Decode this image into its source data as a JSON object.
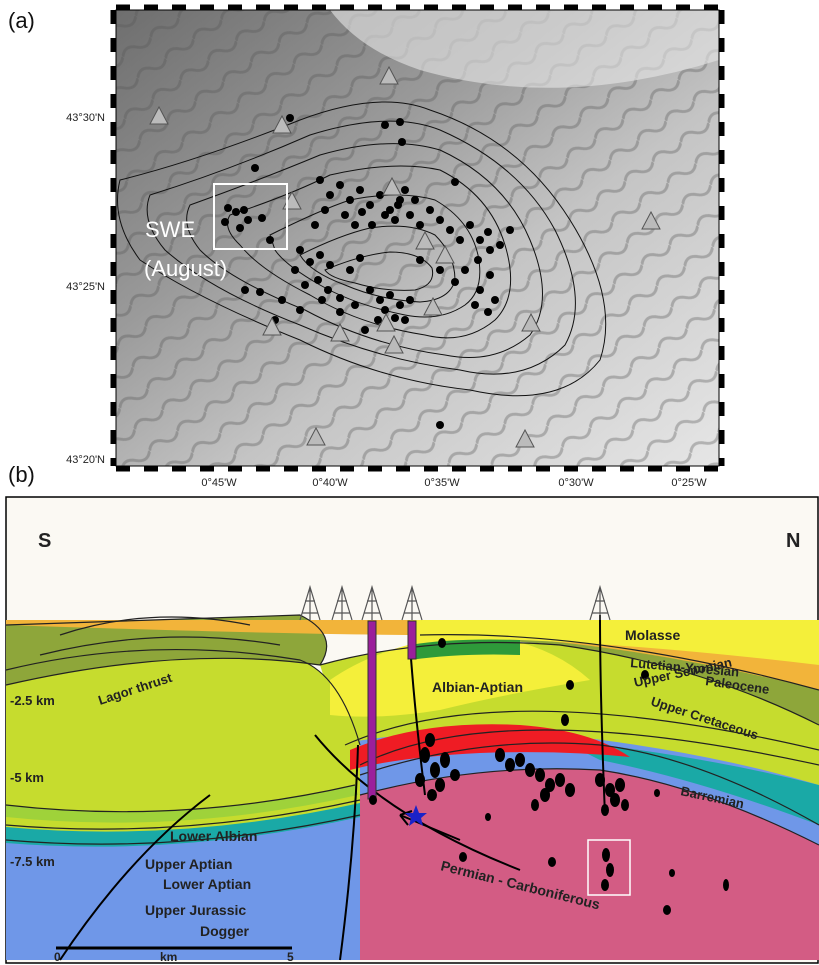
{
  "panel_a": {
    "label": "(a)",
    "lat_ticks": [
      "43°30'N",
      "43°25'N",
      "43°20'N"
    ],
    "lon_ticks": [
      "0°45'W",
      "0°40'W",
      "0°35'W",
      "0°30'W",
      "0°25'W"
    ],
    "box_label_line1": "SWE",
    "box_label_line2": "(August)"
  },
  "panel_b": {
    "label": "(b)",
    "south": "S",
    "north": "N",
    "depths": [
      "-2.5 km",
      "-5 km",
      "-7.5 km"
    ],
    "units": {
      "molasse": "Molasse",
      "lutetian": "Lutetian-Ypresian",
      "paleocene": "Paleocene",
      "upper_senonian": "Upper Senonian",
      "upper_cretaceous": "Upper Cretaceous",
      "albian_aptian": "Albian-Aptian",
      "lagor": "Lagor thrust",
      "barremian": "Barremian",
      "lower_albian": "Lower Albian",
      "upper_aptian": "Upper Aptian",
      "lower_aptian": "Lower Aptian",
      "upper_jurassic": "Upper Jurassic",
      "dogger": "Dogger",
      "permian": "Permian - Carboniferous"
    },
    "scale": {
      "zero": "0",
      "unit": "km",
      "five": "5"
    }
  },
  "colors": {
    "molasse": "#f4ef3a",
    "lutetian": "#f2b43a",
    "olive": "#8ea63a",
    "lime": "#c6dc2e",
    "red": "#ef1c24",
    "blue": "#6f97e8",
    "teal": "#1aa9a6",
    "pink": "#d35c84",
    "well": "#9b1f9b"
  }
}
